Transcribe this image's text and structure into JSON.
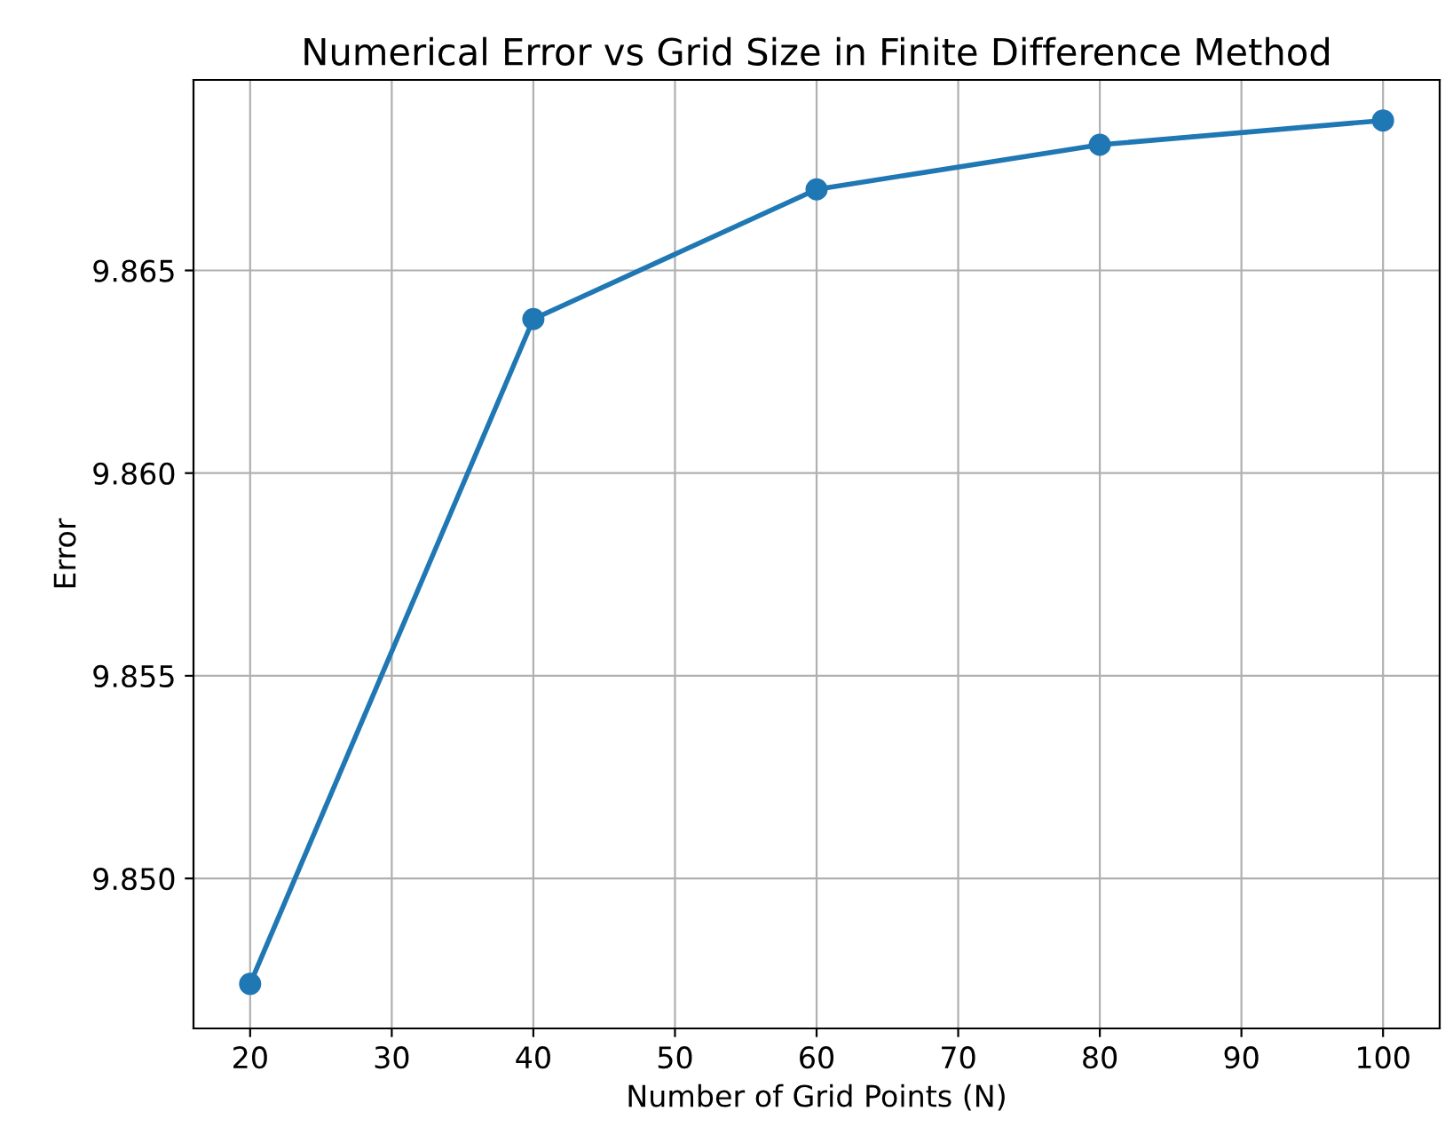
{
  "chart_data": {
    "type": "line",
    "title": "Numerical Error vs Grid Size in Finite Difference Method",
    "xlabel": "Number of Grid Points (N)",
    "ylabel": "Error",
    "x": [
      20,
      40,
      60,
      80,
      100
    ],
    "series": [
      {
        "color": "#1f77b4",
        "values": [
          9.8474,
          9.8638,
          9.867,
          9.8681,
          9.8687
        ]
      }
    ],
    "xlim": [
      16,
      104
    ],
    "ylim": [
      9.8463,
      9.8697
    ],
    "xticks": [
      20,
      30,
      40,
      50,
      60,
      70,
      80,
      90,
      100
    ],
    "yticks": [
      {
        "value": 9.85,
        "label": "9.850"
      },
      {
        "value": 9.855,
        "label": "9.855"
      },
      {
        "value": 9.86,
        "label": "9.860"
      },
      {
        "value": 9.865,
        "label": "9.865"
      }
    ],
    "grid": true,
    "marker": "circle",
    "line_style": "solid"
  }
}
